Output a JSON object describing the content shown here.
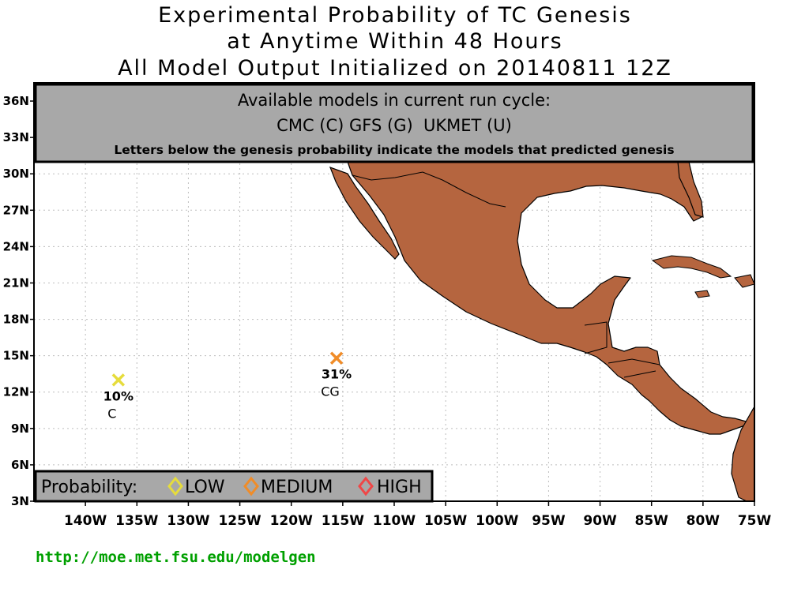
{
  "title": {
    "line1": "Experimental Probability of TC Genesis",
    "line2": "at Anytime Within 48 Hours",
    "line3": "All Model Output Initialized on 20140811 12Z"
  },
  "map": {
    "lon_range": [
      -145,
      -75
    ],
    "lat_range": [
      3,
      37.5
    ],
    "lat_ticks": [
      "36N",
      "33N",
      "30N",
      "27N",
      "24N",
      "21N",
      "18N",
      "15N",
      "12N",
      "9N",
      "6N",
      "3N"
    ],
    "lat_values": [
      36,
      33,
      30,
      27,
      24,
      21,
      18,
      15,
      12,
      9,
      6,
      3
    ],
    "lon_ticks": [
      "140W",
      "135W",
      "130W",
      "125W",
      "120W",
      "115W",
      "110W",
      "105W",
      "100W",
      "95W",
      "90W",
      "85W",
      "80W",
      "75W"
    ],
    "lon_values": [
      -140,
      -135,
      -130,
      -125,
      -120,
      -115,
      -110,
      -105,
      -100,
      -95,
      -90,
      -85,
      -80,
      -75
    ],
    "grid": true,
    "colors": {
      "land": "#b5653f",
      "ocean": "#ffffff",
      "panel": "#a8a8a8",
      "low": "#e6dc3c",
      "medium": "#f08c28",
      "high": "#f04646",
      "url": "#00a000"
    }
  },
  "info_box": {
    "line1": "Available models in current run cycle:",
    "line2": "CMC (C) GFS (G)  UKMET (U)",
    "line3": "Letters below the genesis probability indicate the models that predicted genesis"
  },
  "storms": [
    {
      "lon": -136.8,
      "lat": 13.0,
      "prob": "10%",
      "models": "C",
      "level": "low"
    },
    {
      "lon": -115.6,
      "lat": 14.8,
      "prob": "31%",
      "models": "CG",
      "level": "medium"
    }
  ],
  "legend": {
    "label": "Probability:",
    "low": "LOW",
    "medium": "MEDIUM",
    "high": "HIGH"
  },
  "url": "http://moe.met.fsu.edu/modelgen"
}
